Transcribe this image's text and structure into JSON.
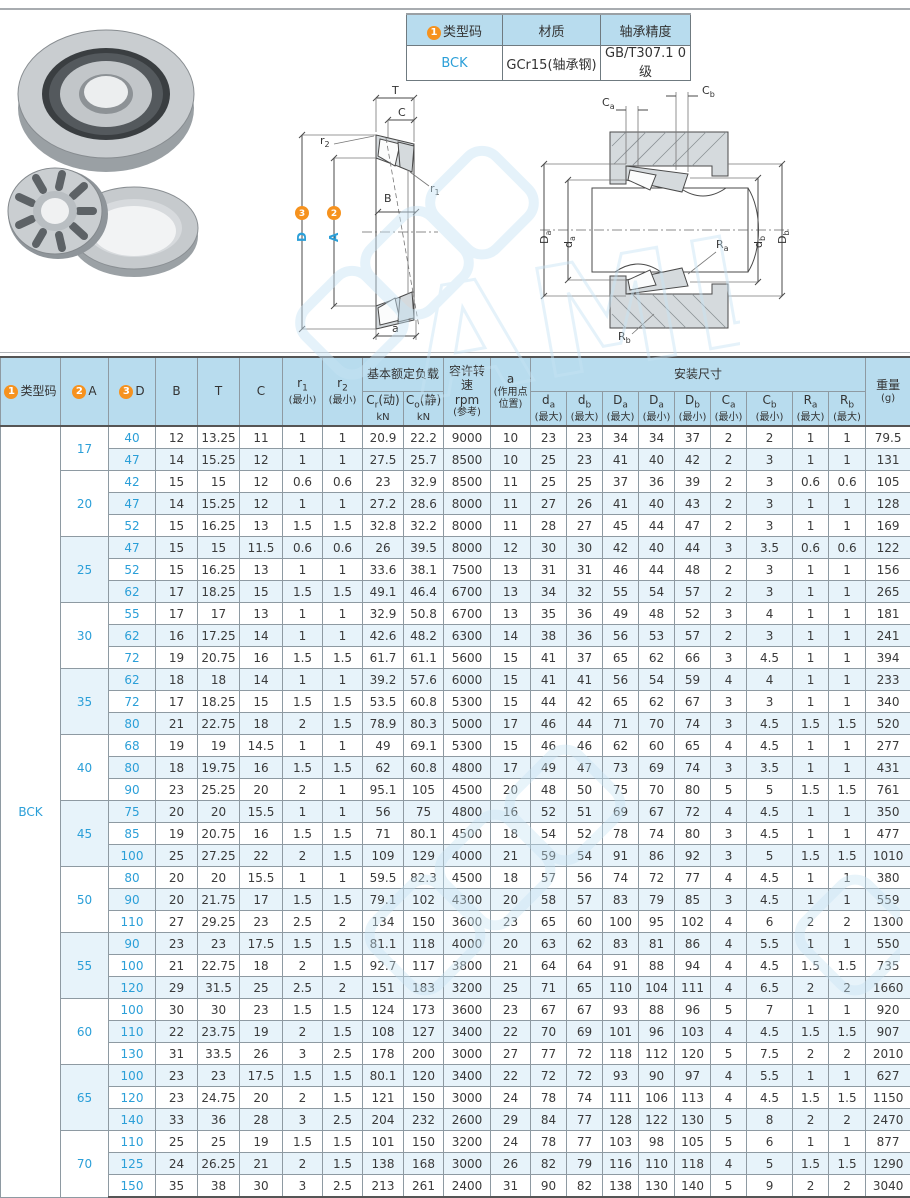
{
  "spec_table": {
    "headers": {
      "code_badge": "1",
      "code_label": "类型码",
      "material": "材质",
      "precision": "轴承精度"
    },
    "row": {
      "code": "BCK",
      "material": "GCr15(轴承钢)",
      "precision": "GB/T307.1 0级"
    }
  },
  "diagrams": {
    "section": {
      "t": "T",
      "c": "C",
      "b": "B",
      "a": "a",
      "r1": {
        "base": "r",
        "sub": "1"
      },
      "r2": {
        "base": "r",
        "sub": "2"
      },
      "d_dim": {
        "badge": "3",
        "label": "D"
      },
      "a_dim": {
        "badge": "2",
        "label": "A"
      }
    },
    "mount": {
      "ca": {
        "base": "C",
        "sub": "a"
      },
      "cb": {
        "base": "C",
        "sub": "b"
      },
      "da": {
        "base": "d",
        "sub": "a"
      },
      "db": {
        "base": "d",
        "sub": "b"
      },
      "Da": {
        "base": "D",
        "sub": "a"
      },
      "Db": {
        "base": "D",
        "sub": "b"
      },
      "ra": {
        "base": "R",
        "sub": "a"
      },
      "rb": {
        "base": "R",
        "sub": "b"
      }
    }
  },
  "watermark": {
    "text": "AML"
  },
  "colors": {
    "accent_blue": "#2b9fd8",
    "header_bg": "#b8dcee",
    "stripe_bg": "#e7f3fa",
    "badge_orange": "#f6921e"
  },
  "table": {
    "code": "BCK",
    "header": {
      "code": {
        "badge": "1",
        "label": "类型码"
      },
      "a_col": {
        "badge": "2",
        "label": "A"
      },
      "d_col": {
        "badge": "3",
        "label": "D"
      },
      "b": "B",
      "t": "T",
      "c": "C",
      "r1": {
        "base": "r",
        "sub": "1",
        "line2": "(最小)"
      },
      "r2": {
        "base": "r",
        "sub": "2",
        "line2": "(最小)"
      },
      "load_group": "基本额定负载",
      "cr": {
        "base": "C",
        "sub": "r",
        "tail": "(动)",
        "line2": "kN"
      },
      "co": {
        "base": "C",
        "sub": "o",
        "tail": "(静)",
        "line2": "kN"
      },
      "rpm": {
        "line1": "容许转速",
        "line2": "rpm",
        "line3": "(参考)"
      },
      "a_pos": {
        "line1": "a",
        "line2": "(作用点",
        "line3": "位置)"
      },
      "mount_group": "安装尺寸",
      "mount_cols": [
        {
          "base": "d",
          "sub": "a",
          "line2": "(最大)"
        },
        {
          "base": "d",
          "sub": "b",
          "line2": "(最大)"
        },
        {
          "base": "D",
          "sub": "a",
          "line2": "(最大)"
        },
        {
          "base": "D",
          "sub": "a",
          "line2": "(最小)"
        },
        {
          "base": "D",
          "sub": "b",
          "line2": "(最小)"
        },
        {
          "base": "C",
          "sub": "a",
          "line2": "(最小)"
        },
        {
          "base": "C",
          "sub": "b",
          "line2": "(最小)"
        },
        {
          "base": "R",
          "sub": "a",
          "line2": "(最大)"
        },
        {
          "base": "R",
          "sub": "b",
          "line2": "(最大)"
        }
      ],
      "weight": {
        "line1": "重量",
        "line2": "(g)"
      }
    },
    "groups": [
      {
        "a": "17",
        "rows": [
          [
            "40",
            "12",
            "13.25",
            "11",
            "1",
            "1",
            "20.9",
            "22.2",
            "9000",
            "10",
            "23",
            "23",
            "34",
            "34",
            "37",
            "2",
            "2",
            "1",
            "1",
            "79.5"
          ],
          [
            "47",
            "14",
            "15.25",
            "12",
            "1",
            "1",
            "27.5",
            "25.7",
            "8500",
            "10",
            "25",
            "23",
            "41",
            "40",
            "42",
            "2",
            "3",
            "1",
            "1",
            "131"
          ]
        ]
      },
      {
        "a": "20",
        "rows": [
          [
            "42",
            "15",
            "15",
            "12",
            "0.6",
            "0.6",
            "23",
            "32.9",
            "8500",
            "11",
            "25",
            "25",
            "37",
            "36",
            "39",
            "2",
            "3",
            "0.6",
            "0.6",
            "105"
          ],
          [
            "47",
            "14",
            "15.25",
            "12",
            "1",
            "1",
            "27.2",
            "28.6",
            "8000",
            "11",
            "27",
            "26",
            "41",
            "40",
            "43",
            "2",
            "3",
            "1",
            "1",
            "128"
          ],
          [
            "52",
            "15",
            "16.25",
            "13",
            "1.5",
            "1.5",
            "32.8",
            "32.2",
            "8000",
            "11",
            "28",
            "27",
            "45",
            "44",
            "47",
            "2",
            "3",
            "1",
            "1",
            "169"
          ]
        ]
      },
      {
        "a": "25",
        "rows": [
          [
            "47",
            "15",
            "15",
            "11.5",
            "0.6",
            "0.6",
            "26",
            "39.5",
            "8000",
            "12",
            "30",
            "30",
            "42",
            "40",
            "44",
            "3",
            "3.5",
            "0.6",
            "0.6",
            "122"
          ],
          [
            "52",
            "15",
            "16.25",
            "13",
            "1",
            "1",
            "33.6",
            "38.1",
            "7500",
            "13",
            "31",
            "31",
            "46",
            "44",
            "48",
            "2",
            "3",
            "1",
            "1",
            "156"
          ],
          [
            "62",
            "17",
            "18.25",
            "15",
            "1.5",
            "1.5",
            "49.1",
            "46.4",
            "6700",
            "13",
            "34",
            "32",
            "55",
            "54",
            "57",
            "2",
            "3",
            "1",
            "1",
            "265"
          ]
        ]
      },
      {
        "a": "30",
        "rows": [
          [
            "55",
            "17",
            "17",
            "13",
            "1",
            "1",
            "32.9",
            "50.8",
            "6700",
            "13",
            "35",
            "36",
            "49",
            "48",
            "52",
            "3",
            "4",
            "1",
            "1",
            "181"
          ],
          [
            "62",
            "16",
            "17.25",
            "14",
            "1",
            "1",
            "42.6",
            "48.2",
            "6300",
            "14",
            "38",
            "36",
            "56",
            "53",
            "57",
            "2",
            "3",
            "1",
            "1",
            "241"
          ],
          [
            "72",
            "19",
            "20.75",
            "16",
            "1.5",
            "1.5",
            "61.7",
            "61.1",
            "5600",
            "15",
            "41",
            "37",
            "65",
            "62",
            "66",
            "3",
            "4.5",
            "1",
            "1",
            "394"
          ]
        ]
      },
      {
        "a": "35",
        "rows": [
          [
            "62",
            "18",
            "18",
            "14",
            "1",
            "1",
            "39.2",
            "57.6",
            "6000",
            "15",
            "41",
            "41",
            "56",
            "54",
            "59",
            "4",
            "4",
            "1",
            "1",
            "233"
          ],
          [
            "72",
            "17",
            "18.25",
            "15",
            "1.5",
            "1.5",
            "53.5",
            "60.8",
            "5300",
            "15",
            "44",
            "42",
            "65",
            "62",
            "67",
            "3",
            "3",
            "1",
            "1",
            "340"
          ],
          [
            "80",
            "21",
            "22.75",
            "18",
            "2",
            "1.5",
            "78.9",
            "80.3",
            "5000",
            "17",
            "46",
            "44",
            "71",
            "70",
            "74",
            "3",
            "4.5",
            "1.5",
            "1.5",
            "520"
          ]
        ]
      },
      {
        "a": "40",
        "rows": [
          [
            "68",
            "19",
            "19",
            "14.5",
            "1",
            "1",
            "49",
            "69.1",
            "5300",
            "15",
            "46",
            "46",
            "62",
            "60",
            "65",
            "4",
            "4.5",
            "1",
            "1",
            "277"
          ],
          [
            "80",
            "18",
            "19.75",
            "16",
            "1.5",
            "1.5",
            "62",
            "60.8",
            "4800",
            "17",
            "49",
            "47",
            "73",
            "69",
            "74",
            "3",
            "3.5",
            "1",
            "1",
            "431"
          ],
          [
            "90",
            "23",
            "25.25",
            "20",
            "2",
            "1",
            "95.1",
            "105",
            "4500",
            "20",
            "48",
            "50",
            "75",
            "70",
            "80",
            "5",
            "5",
            "1.5",
            "1.5",
            "761"
          ]
        ]
      },
      {
        "a": "45",
        "rows": [
          [
            "75",
            "20",
            "20",
            "15.5",
            "1",
            "1",
            "56",
            "75",
            "4800",
            "16",
            "52",
            "51",
            "69",
            "67",
            "72",
            "4",
            "4.5",
            "1",
            "1",
            "350"
          ],
          [
            "85",
            "19",
            "20.75",
            "16",
            "1.5",
            "1.5",
            "71",
            "80.1",
            "4500",
            "18",
            "54",
            "52",
            "78",
            "74",
            "80",
            "3",
            "4.5",
            "1",
            "1",
            "477"
          ],
          [
            "100",
            "25",
            "27.25",
            "22",
            "2",
            "1.5",
            "109",
            "129",
            "4000",
            "21",
            "59",
            "54",
            "91",
            "86",
            "92",
            "3",
            "5",
            "1.5",
            "1.5",
            "1010"
          ]
        ]
      },
      {
        "a": "50",
        "rows": [
          [
            "80",
            "20",
            "20",
            "15.5",
            "1",
            "1",
            "59.5",
            "82.3",
            "4500",
            "18",
            "57",
            "56",
            "74",
            "72",
            "77",
            "4",
            "4.5",
            "1",
            "1",
            "380"
          ],
          [
            "90",
            "20",
            "21.75",
            "17",
            "1.5",
            "1.5",
            "79.1",
            "102",
            "4300",
            "20",
            "58",
            "57",
            "83",
            "79",
            "85",
            "3",
            "4.5",
            "1",
            "1",
            "559"
          ],
          [
            "110",
            "27",
            "29.25",
            "23",
            "2.5",
            "2",
            "134",
            "150",
            "3600",
            "23",
            "65",
            "60",
            "100",
            "95",
            "102",
            "4",
            "6",
            "2",
            "2",
            "1300"
          ]
        ]
      },
      {
        "a": "55",
        "rows": [
          [
            "90",
            "23",
            "23",
            "17.5",
            "1.5",
            "1.5",
            "81.1",
            "118",
            "4000",
            "20",
            "63",
            "62",
            "83",
            "81",
            "86",
            "4",
            "5.5",
            "1",
            "1",
            "550"
          ],
          [
            "100",
            "21",
            "22.75",
            "18",
            "2",
            "1.5",
            "92.7",
            "117",
            "3800",
            "21",
            "64",
            "64",
            "91",
            "88",
            "94",
            "4",
            "4.5",
            "1.5",
            "1.5",
            "735"
          ],
          [
            "120",
            "29",
            "31.5",
            "25",
            "2.5",
            "2",
            "151",
            "183",
            "3200",
            "25",
            "71",
            "65",
            "110",
            "104",
            "111",
            "4",
            "6.5",
            "2",
            "2",
            "1660"
          ]
        ]
      },
      {
        "a": "60",
        "rows": [
          [
            "100",
            "30",
            "30",
            "23",
            "1.5",
            "1.5",
            "124",
            "173",
            "3600",
            "23",
            "67",
            "67",
            "93",
            "88",
            "96",
            "5",
            "7",
            "1",
            "1",
            "920"
          ],
          [
            "110",
            "22",
            "23.75",
            "19",
            "2",
            "1.5",
            "108",
            "127",
            "3400",
            "22",
            "70",
            "69",
            "101",
            "96",
            "103",
            "4",
            "4.5",
            "1.5",
            "1.5",
            "907"
          ],
          [
            "130",
            "31",
            "33.5",
            "26",
            "3",
            "2.5",
            "178",
            "200",
            "3000",
            "27",
            "77",
            "72",
            "118",
            "112",
            "120",
            "5",
            "7.5",
            "2",
            "2",
            "2010"
          ]
        ]
      },
      {
        "a": "65",
        "rows": [
          [
            "100",
            "23",
            "23",
            "17.5",
            "1.5",
            "1.5",
            "80.1",
            "120",
            "3400",
            "22",
            "72",
            "72",
            "93",
            "90",
            "97",
            "4",
            "5.5",
            "1",
            "1",
            "627"
          ],
          [
            "120",
            "23",
            "24.75",
            "20",
            "2",
            "1.5",
            "121",
            "150",
            "3000",
            "24",
            "78",
            "74",
            "111",
            "106",
            "113",
            "4",
            "4.5",
            "1.5",
            "1.5",
            "1150"
          ],
          [
            "140",
            "33",
            "36",
            "28",
            "3",
            "2.5",
            "204",
            "232",
            "2600",
            "29",
            "84",
            "77",
            "128",
            "122",
            "130",
            "5",
            "8",
            "2",
            "2",
            "2470"
          ]
        ]
      },
      {
        "a": "70",
        "rows": [
          [
            "110",
            "25",
            "25",
            "19",
            "1.5",
            "1.5",
            "101",
            "150",
            "3200",
            "24",
            "78",
            "77",
            "103",
            "98",
            "105",
            "5",
            "6",
            "1",
            "1",
            "877"
          ],
          [
            "125",
            "24",
            "26.25",
            "21",
            "2",
            "1.5",
            "138",
            "168",
            "3000",
            "26",
            "82",
            "79",
            "116",
            "110",
            "118",
            "4",
            "5",
            "1.5",
            "1.5",
            "1290"
          ],
          [
            "150",
            "35",
            "38",
            "30",
            "3",
            "2.5",
            "213",
            "261",
            "2400",
            "31",
            "90",
            "82",
            "138",
            "130",
            "140",
            "5",
            "9",
            "2",
            "2",
            "3040"
          ]
        ]
      }
    ]
  }
}
